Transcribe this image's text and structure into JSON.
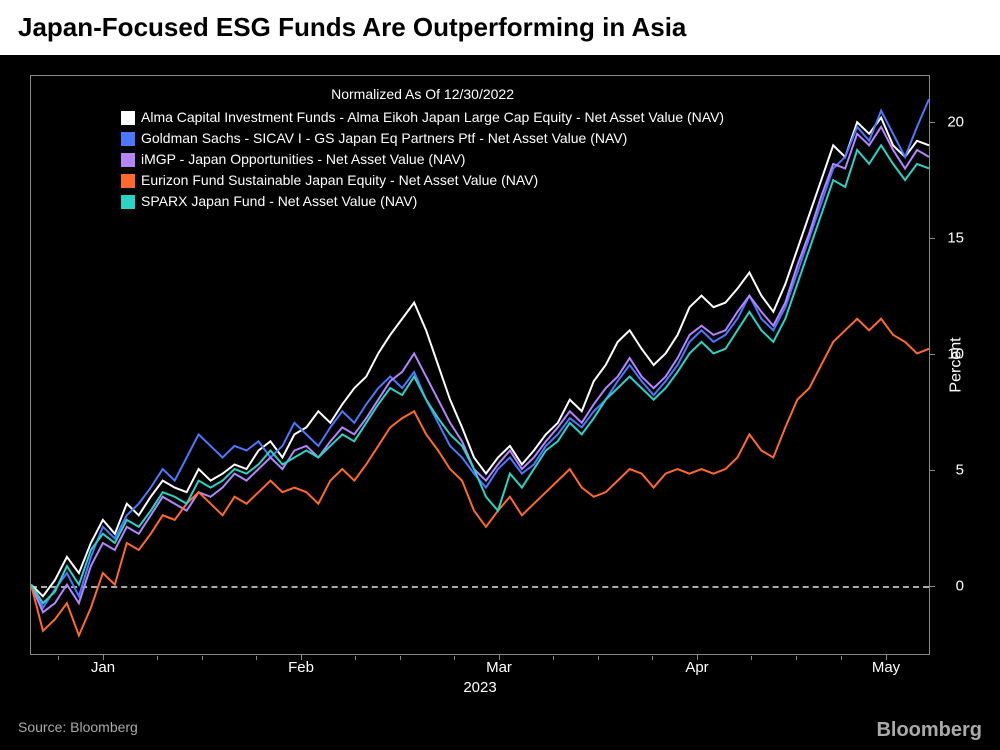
{
  "title": "Japan-Focused ESG Funds Are Outperforming in Asia",
  "legend_title": "Normalized As Of 12/30/2022",
  "source": "Source: Bloomberg",
  "attribution": "Bloomberg",
  "background_color": "#000000",
  "title_bg": "#ffffff",
  "title_color": "#000000",
  "axis_color": "#888888",
  "text_color": "#ffffff",
  "zero_line_color": "#aaaaaa",
  "y_axis": {
    "label": "Percent",
    "min": -3,
    "max": 22,
    "ticks": [
      0,
      5,
      10,
      15,
      20
    ]
  },
  "x_axis": {
    "year": "2023",
    "ticks": [
      {
        "label": "Jan",
        "pos": 0.08
      },
      {
        "label": "Feb",
        "pos": 0.3
      },
      {
        "label": "Mar",
        "pos": 0.52
      },
      {
        "label": "Apr",
        "pos": 0.74
      },
      {
        "label": "May",
        "pos": 0.95
      }
    ],
    "minor_ticks": [
      0.03,
      0.14,
      0.19,
      0.25,
      0.36,
      0.41,
      0.47,
      0.58,
      0.63,
      0.69,
      0.8,
      0.85,
      0.9
    ]
  },
  "series": [
    {
      "name": "Alma Capital Investment Funds - Alma Eikoh Japan Large Cap Equity - Net Asset Value (NAV)",
      "color": "#ffffff",
      "data": [
        0,
        -0.5,
        0.2,
        1.2,
        0.5,
        1.8,
        2.8,
        2.2,
        3.5,
        3.0,
        3.8,
        4.5,
        4.2,
        4.0,
        5.0,
        4.5,
        4.8,
        5.2,
        5.0,
        5.8,
        6.2,
        5.5,
        6.5,
        6.8,
        7.5,
        7.0,
        7.8,
        8.5,
        9.0,
        10.0,
        10.8,
        11.5,
        12.2,
        11.0,
        9.5,
        8.0,
        6.8,
        5.5,
        4.8,
        5.5,
        6.0,
        5.2,
        5.8,
        6.5,
        7.0,
        8.0,
        7.5,
        8.8,
        9.5,
        10.5,
        11.0,
        10.2,
        9.5,
        10.0,
        10.8,
        12.0,
        12.5,
        12.0,
        12.2,
        12.8,
        13.5,
        12.5,
        11.8,
        13.0,
        14.5,
        16.0,
        17.5,
        19.0,
        18.5,
        20.0,
        19.5,
        20.2,
        19.0,
        18.5,
        19.2,
        19.0
      ]
    },
    {
      "name": "Goldman Sachs - SICAV I - GS Japan Eq Partners Ptf - Net Asset Value (NAV)",
      "color": "#4a78ff",
      "data": [
        0,
        -1.0,
        -0.2,
        0.5,
        -0.5,
        1.2,
        2.5,
        2.0,
        3.0,
        3.5,
        4.2,
        5.0,
        4.5,
        5.5,
        6.5,
        6.0,
        5.5,
        6.0,
        5.8,
        6.2,
        5.5,
        6.0,
        7.0,
        6.5,
        6.0,
        6.8,
        7.5,
        7.0,
        7.8,
        8.5,
        9.0,
        8.5,
        9.2,
        8.0,
        7.0,
        6.0,
        5.5,
        4.8,
        4.2,
        5.0,
        5.5,
        4.8,
        5.2,
        6.0,
        6.5,
        7.2,
        6.8,
        7.5,
        8.0,
        8.8,
        9.5,
        8.8,
        8.2,
        8.8,
        9.5,
        10.5,
        11.0,
        10.5,
        10.8,
        11.5,
        12.5,
        11.5,
        11.0,
        12.0,
        13.5,
        15.0,
        16.5,
        18.0,
        18.5,
        19.8,
        19.2,
        20.5,
        19.5,
        18.5,
        19.8,
        21.0
      ]
    },
    {
      "name": "iMGP - Japan Opportunities - Net Asset Value (NAV)",
      "color": "#b584ff",
      "data": [
        0,
        -1.2,
        -0.8,
        0.0,
        -0.8,
        0.8,
        1.8,
        1.5,
        2.5,
        2.2,
        3.0,
        3.8,
        3.5,
        3.2,
        4.0,
        3.8,
        4.2,
        4.8,
        4.5,
        5.0,
        5.5,
        5.0,
        5.8,
        6.0,
        5.5,
        6.2,
        6.8,
        6.5,
        7.2,
        8.0,
        8.8,
        9.2,
        10.0,
        9.0,
        8.0,
        7.0,
        6.2,
        5.0,
        4.5,
        5.2,
        5.8,
        5.0,
        5.5,
        6.2,
        6.8,
        7.5,
        7.0,
        7.8,
        8.5,
        9.0,
        9.8,
        9.0,
        8.5,
        9.0,
        9.8,
        10.8,
        11.2,
        10.8,
        11.0,
        11.8,
        12.5,
        11.8,
        11.2,
        12.2,
        13.8,
        15.2,
        16.8,
        18.2,
        18.0,
        19.5,
        19.0,
        19.8,
        18.8,
        18.0,
        18.8,
        18.5
      ]
    },
    {
      "name": "Eurizon Fund Sustainable Japan Equity - Net Asset Value (NAV)",
      "color": "#ff6a2a",
      "data": [
        0,
        -2.0,
        -1.5,
        -0.8,
        -2.2,
        -1.0,
        0.5,
        0.0,
        1.8,
        1.5,
        2.2,
        3.0,
        2.8,
        3.5,
        4.0,
        3.5,
        3.0,
        3.8,
        3.5,
        4.0,
        4.5,
        4.0,
        4.2,
        4.0,
        3.5,
        4.5,
        5.0,
        4.5,
        5.2,
        6.0,
        6.8,
        7.2,
        7.5,
        6.5,
        5.8,
        5.0,
        4.5,
        3.2,
        2.5,
        3.2,
        3.8,
        3.0,
        3.5,
        4.0,
        4.5,
        5.0,
        4.2,
        3.8,
        4.0,
        4.5,
        5.0,
        4.8,
        4.2,
        4.8,
        5.0,
        4.8,
        5.0,
        4.8,
        5.0,
        5.5,
        6.5,
        5.8,
        5.5,
        6.8,
        8.0,
        8.5,
        9.5,
        10.5,
        11.0,
        11.5,
        11.0,
        11.5,
        10.8,
        10.5,
        10.0,
        10.2
      ]
    },
    {
      "name": "SPARX Japan Fund - Net Asset Value (NAV)",
      "color": "#2ad4c4",
      "data": [
        0,
        -0.8,
        -0.3,
        0.8,
        0.0,
        1.5,
        2.2,
        1.8,
        2.8,
        2.5,
        3.2,
        4.0,
        3.8,
        3.5,
        4.5,
        4.2,
        4.5,
        5.0,
        4.8,
        5.2,
        5.8,
        5.2,
        5.5,
        5.8,
        5.5,
        6.0,
        6.5,
        6.2,
        7.0,
        7.8,
        8.5,
        8.2,
        9.0,
        8.0,
        7.2,
        6.5,
        6.0,
        5.0,
        3.8,
        3.2,
        4.8,
        4.2,
        5.0,
        5.8,
        6.2,
        7.0,
        6.5,
        7.2,
        8.0,
        8.5,
        9.0,
        8.5,
        8.0,
        8.5,
        9.2,
        10.0,
        10.5,
        10.0,
        10.2,
        11.0,
        11.8,
        11.0,
        10.5,
        11.5,
        13.0,
        14.5,
        16.0,
        17.5,
        17.2,
        18.8,
        18.2,
        19.0,
        18.2,
        17.5,
        18.2,
        18.0
      ]
    }
  ]
}
